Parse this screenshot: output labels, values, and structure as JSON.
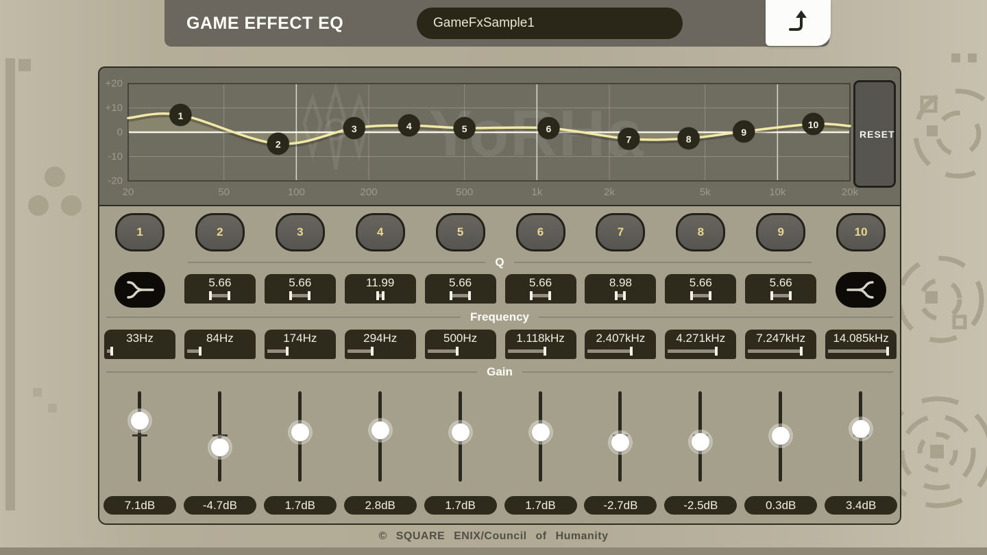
{
  "header": {
    "title": "GAME EFFECT EQ",
    "preset_name": "GameFxSample1",
    "exit_icon": "return-arrow"
  },
  "graph": {
    "reset_label": "RESET",
    "watermark_text": "YoRHa"
  },
  "sections": {
    "q_label": "Q",
    "frequency_label": "Frequency",
    "gain_label": "Gain"
  },
  "bands": [
    {
      "number": "1",
      "type": "low_shelf",
      "freq_hz": 33,
      "freq_label": "33Hz",
      "gain_db": 7.1,
      "gain_label": "7.1dB",
      "q": null,
      "q_label": null
    },
    {
      "number": "2",
      "type": "peak",
      "freq_hz": 84,
      "freq_label": "84Hz",
      "gain_db": -4.7,
      "gain_label": "-4.7dB",
      "q": 5.66,
      "q_label": "5.66"
    },
    {
      "number": "3",
      "type": "peak",
      "freq_hz": 174,
      "freq_label": "174Hz",
      "gain_db": 1.7,
      "gain_label": "1.7dB",
      "q": 5.66,
      "q_label": "5.66"
    },
    {
      "number": "4",
      "type": "peak",
      "freq_hz": 294,
      "freq_label": "294Hz",
      "gain_db": 2.8,
      "gain_label": "2.8dB",
      "q": 11.99,
      "q_label": "11.99"
    },
    {
      "number": "5",
      "type": "peak",
      "freq_hz": 500,
      "freq_label": "500Hz",
      "gain_db": 1.7,
      "gain_label": "1.7dB",
      "q": 5.66,
      "q_label": "5.66"
    },
    {
      "number": "6",
      "type": "peak",
      "freq_hz": 1118,
      "freq_label": "1.118kHz",
      "gain_db": 1.7,
      "gain_label": "1.7dB",
      "q": 5.66,
      "q_label": "5.66"
    },
    {
      "number": "7",
      "type": "peak",
      "freq_hz": 2407,
      "freq_label": "2.407kHz",
      "gain_db": -2.7,
      "gain_label": "-2.7dB",
      "q": 8.98,
      "q_label": "8.98"
    },
    {
      "number": "8",
      "type": "peak",
      "freq_hz": 4271,
      "freq_label": "4.271kHz",
      "gain_db": -2.5,
      "gain_label": "-2.5dB",
      "q": 5.66,
      "q_label": "5.66"
    },
    {
      "number": "9",
      "type": "peak",
      "freq_hz": 7247,
      "freq_label": "7.247kHz",
      "gain_db": 0.3,
      "gain_label": "0.3dB",
      "q": 5.66,
      "q_label": "5.66"
    },
    {
      "number": "10",
      "type": "high_shelf",
      "freq_hz": 14085,
      "freq_label": "14.085kHz",
      "gain_db": 3.4,
      "gain_label": "3.4dB",
      "q": null,
      "q_label": null
    }
  ],
  "chart_data": {
    "type": "line",
    "title": "EQ response curve",
    "x": [
      33,
      84,
      174,
      294,
      500,
      1118,
      2407,
      4271,
      7247,
      14085
    ],
    "y": [
      7.1,
      -4.7,
      1.7,
      2.8,
      1.7,
      1.7,
      -2.7,
      -2.5,
      0.3,
      3.4
    ],
    "point_labels": [
      "1",
      "2",
      "3",
      "4",
      "5",
      "6",
      "7",
      "8",
      "9",
      "10"
    ],
    "x_scale": "log",
    "xlim": [
      20,
      20000
    ],
    "ylim": [
      -20,
      20
    ],
    "x_tick_values": [
      20,
      50,
      100,
      200,
      500,
      1000,
      2000,
      5000,
      10000,
      20000
    ],
    "x_tick_labels": [
      "20",
      "50",
      "100",
      "200",
      "500",
      "1k",
      "2k",
      "5k",
      "10k",
      "20k"
    ],
    "y_tick_values": [
      20,
      10,
      0,
      -10,
      -20
    ],
    "y_tick_labels": [
      "+20",
      "+10",
      "0",
      "-10",
      "-20"
    ],
    "grid": true,
    "legend": false,
    "line_color": "#f2e9a7"
  },
  "footer": {
    "copyright": "© SQUARE ENIX/Council of Humanity"
  },
  "colors": {
    "curve_accent": "#f2e9a7",
    "graph_panel": "#6f6c60",
    "controls_panel": "#a5a08c",
    "dark_box": "#2e2b1d",
    "band_number_gold": "#ead78f",
    "header_bar": "#6b675e"
  }
}
